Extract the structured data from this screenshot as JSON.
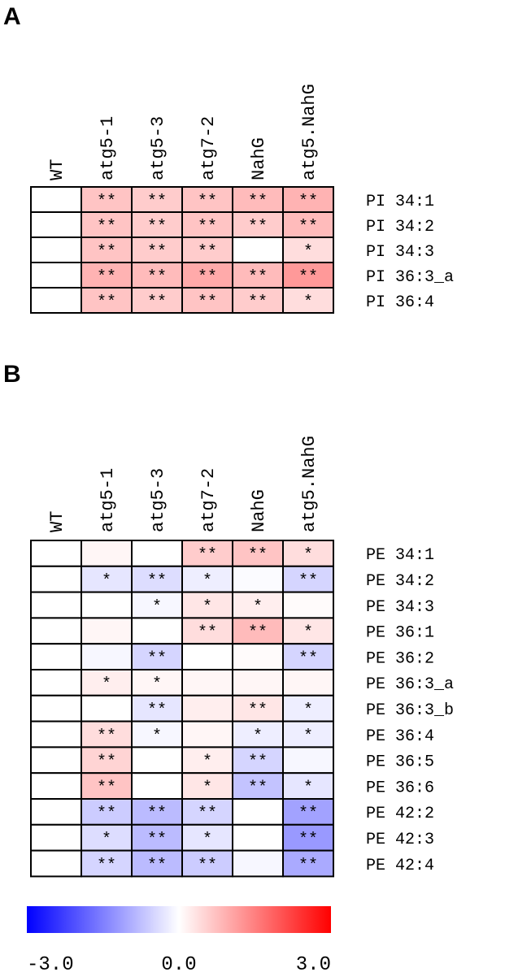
{
  "chart_data": [
    {
      "type": "heatmap",
      "panel": "A",
      "columns": [
        "WT",
        "atg5-1",
        "atg5-3",
        "atg7-2",
        "NahG",
        "atg5.NahG"
      ],
      "rows": [
        "PI 34:1",
        "PI 34:2",
        "PI 34:3",
        "PI 36:3_a",
        "PI 36:4"
      ],
      "values": [
        [
          0,
          0.7,
          0.6,
          0.7,
          0.8,
          0.9
        ],
        [
          0,
          0.7,
          0.6,
          0.7,
          0.6,
          0.8
        ],
        [
          0,
          0.7,
          0.6,
          0.6,
          0,
          0.4
        ],
        [
          0,
          0.9,
          0.8,
          1.0,
          0.8,
          1.2
        ],
        [
          0,
          0.7,
          0.6,
          0.7,
          0.6,
          0.4
        ]
      ],
      "annotations": [
        [
          null,
          "**",
          "**",
          "**",
          "**",
          "**"
        ],
        [
          null,
          "**",
          "**",
          "**",
          "**",
          "**"
        ],
        [
          null,
          "**",
          "**",
          "**",
          null,
          "*"
        ],
        [
          null,
          "**",
          "**",
          "**",
          "**",
          "**"
        ],
        [
          null,
          "**",
          "**",
          "**",
          "**",
          "*"
        ]
      ]
    },
    {
      "type": "heatmap",
      "panel": "B",
      "columns": [
        "WT",
        "atg5-1",
        "atg5-3",
        "atg7-2",
        "NahG",
        "atg5.NahG"
      ],
      "rows": [
        "PE 34:1",
        "PE 34:2",
        "PE 34:3",
        "PE 36:1",
        "PE 36:2",
        "PE 36:3_a",
        "PE 36:3_b",
        "PE 36:4",
        "PE 36:5",
        "PE 36:6",
        "PE 42:2",
        "PE 42:3",
        "PE 42:4"
      ],
      "values": [
        [
          0,
          0.1,
          0.0,
          0.6,
          0.7,
          0.4
        ],
        [
          0,
          -0.3,
          -0.4,
          -0.2,
          -0.05,
          -0.5
        ],
        [
          0,
          0.0,
          -0.1,
          0.3,
          0.2,
          0.05
        ],
        [
          0,
          0.1,
          0.0,
          0.4,
          0.8,
          0.3
        ],
        [
          0,
          -0.1,
          -0.5,
          0.0,
          0.05,
          -0.5
        ],
        [
          0,
          0.2,
          0.1,
          0.1,
          0.1,
          0.1
        ],
        [
          0,
          0.0,
          -0.3,
          0.2,
          0.3,
          -0.2
        ],
        [
          0,
          0.4,
          -0.1,
          0.1,
          -0.2,
          -0.2
        ],
        [
          0,
          0.5,
          0.0,
          0.2,
          -0.5,
          -0.1
        ],
        [
          0,
          0.7,
          0.0,
          0.3,
          -0.7,
          -0.3
        ],
        [
          0,
          -0.6,
          -0.8,
          -0.5,
          0.0,
          -1.1
        ],
        [
          0,
          -0.4,
          -0.8,
          -0.3,
          0.0,
          -1.2
        ],
        [
          0,
          -0.5,
          -0.8,
          -0.6,
          -0.1,
          -1.0
        ]
      ],
      "annotations": [
        [
          null,
          null,
          null,
          "**",
          "**",
          "*"
        ],
        [
          null,
          "*",
          "**",
          "*",
          null,
          "**"
        ],
        [
          null,
          null,
          "*",
          "*",
          "*",
          null
        ],
        [
          null,
          null,
          null,
          "**",
          "**",
          "*"
        ],
        [
          null,
          null,
          "**",
          null,
          null,
          "**"
        ],
        [
          null,
          "*",
          "*",
          null,
          null,
          null
        ],
        [
          null,
          null,
          "**",
          null,
          "**",
          "*"
        ],
        [
          null,
          "**",
          "*",
          null,
          "*",
          "*"
        ],
        [
          null,
          "**",
          null,
          "*",
          "**",
          null
        ],
        [
          null,
          "**",
          null,
          "*",
          "**",
          "*"
        ],
        [
          null,
          "**",
          "**",
          "**",
          null,
          "**"
        ],
        [
          null,
          "*",
          "**",
          "*",
          null,
          "**"
        ],
        [
          null,
          "**",
          "**",
          "**",
          null,
          "**"
        ]
      ]
    }
  ],
  "colorbar": {
    "lim": [
      -3,
      3
    ],
    "colors": [
      "#0000ff",
      "#ffffff",
      "#ff0000"
    ],
    "ticks": [
      {
        "value": -3,
        "label": "-3.0"
      },
      {
        "value": 0,
        "label": "0.0"
      },
      {
        "value": 3,
        "label": "3.0"
      }
    ]
  }
}
